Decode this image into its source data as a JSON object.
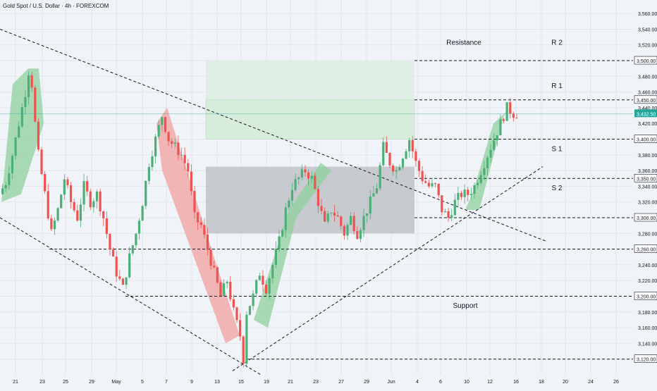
{
  "title": "Gold Spot / U.S. Dollar · 4h · FOREXCOM",
  "colors": {
    "background": "#f0f3f7",
    "up": "#4caf78",
    "down": "#ef5350",
    "grid": "#e3e6eb",
    "line": "#131722",
    "resistance_zone": "#d6ecd9",
    "consolidation_zone": "#b9bcc0",
    "arrow_up": "#8fd19e",
    "arrow_down": "#f2a0a0",
    "price_label": "#26a69a"
  },
  "chart_data": {
    "type": "candlestick",
    "symbol": "Gold Spot / U.S. Dollar",
    "timeframe": "4h",
    "source": "FOREXCOM",
    "ylim": [
      3100,
      3570
    ],
    "y_ticks": [
      "3,120.00",
      "3,140.00",
      "3,160.00",
      "3,180.00",
      "3,200.00",
      "3,220.00",
      "3,240.00",
      "3,260.00",
      "3,280.00",
      "3,300.00",
      "3,320.00",
      "3,340.00",
      "3,360.00",
      "3,380.00",
      "3,400.00",
      "3,420.00",
      "3,440.00",
      "3,460.00",
      "3,480.00",
      "3,500.00",
      "3,520.00",
      "3,540.00",
      "3,560.00"
    ],
    "x_ticks": [
      "21",
      "23",
      "25",
      "29",
      "May",
      "5",
      "7",
      "9",
      "13",
      "15",
      "19",
      "21",
      "23",
      "27",
      "29",
      "Jun",
      "4",
      "6",
      "10",
      "12",
      "16",
      "18",
      "20",
      "24",
      "26"
    ],
    "price_path": [
      [
        0,
        3330
      ],
      [
        2,
        3345
      ],
      [
        4,
        3380
      ],
      [
        6,
        3420
      ],
      [
        8,
        3460
      ],
      [
        9.5,
        3500
      ],
      [
        10.5,
        3440
      ],
      [
        12,
        3380
      ],
      [
        14,
        3330
      ],
      [
        16,
        3280
      ],
      [
        18,
        3310
      ],
      [
        20,
        3350
      ],
      [
        22,
        3320
      ],
      [
        24,
        3300
      ],
      [
        26,
        3340
      ],
      [
        28,
        3320
      ],
      [
        30,
        3330
      ],
      [
        32,
        3300
      ],
      [
        34,
        3260
      ],
      [
        36,
        3230
      ],
      [
        38,
        3210
      ],
      [
        40,
        3250
      ],
      [
        42,
        3280
      ],
      [
        44,
        3320
      ],
      [
        46,
        3370
      ],
      [
        48,
        3400
      ],
      [
        50,
        3430
      ],
      [
        52,
        3400
      ],
      [
        54,
        3390
      ],
      [
        56,
        3380
      ],
      [
        58,
        3360
      ],
      [
        60,
        3300
      ],
      [
        62,
        3290
      ],
      [
        64,
        3260
      ],
      [
        66,
        3230
      ],
      [
        68,
        3200
      ],
      [
        70,
        3220
      ],
      [
        72,
        3180
      ],
      [
        74,
        3150
      ],
      [
        75,
        3120
      ],
      [
        76,
        3180
      ],
      [
        78,
        3200
      ],
      [
        80,
        3230
      ],
      [
        82,
        3210
      ],
      [
        84,
        3240
      ],
      [
        86,
        3270
      ],
      [
        88,
        3310
      ],
      [
        90,
        3340
      ],
      [
        92,
        3350
      ],
      [
        94,
        3360
      ],
      [
        96,
        3350
      ],
      [
        98,
        3320
      ],
      [
        100,
        3290
      ],
      [
        102,
        3310
      ],
      [
        104,
        3300
      ],
      [
        106,
        3280
      ],
      [
        108,
        3300
      ],
      [
        110,
        3280
      ],
      [
        112,
        3300
      ],
      [
        114,
        3320
      ],
      [
        116,
        3340
      ],
      [
        118,
        3390
      ],
      [
        120,
        3370
      ],
      [
        122,
        3360
      ],
      [
        124,
        3380
      ],
      [
        126,
        3400
      ],
      [
        128,
        3370
      ],
      [
        130,
        3350
      ],
      [
        132,
        3340
      ],
      [
        134,
        3340
      ],
      [
        136,
        3310
      ],
      [
        138,
        3300
      ],
      [
        140,
        3320
      ],
      [
        142,
        3330
      ],
      [
        144,
        3330
      ],
      [
        146,
        3340
      ],
      [
        148,
        3360
      ],
      [
        150,
        3380
      ],
      [
        152,
        3400
      ],
      [
        154,
        3420
      ],
      [
        156,
        3440
      ],
      [
        158,
        3432.5
      ]
    ],
    "horizontal_levels": [
      {
        "label": "3,500.00",
        "value": 3500,
        "name": "R 2"
      },
      {
        "label": "3,450.00",
        "value": 3450,
        "name": "R 1"
      },
      {
        "label": "3,400.00",
        "value": 3400,
        "name": "S 1"
      },
      {
        "label": "3,350.00",
        "value": 3350,
        "name": "S 2"
      },
      {
        "label": "3,300.00",
        "value": 3300,
        "name": ""
      },
      {
        "label": "3,260.00",
        "value": 3260,
        "name": ""
      },
      {
        "label": "3,200.00",
        "value": 3200,
        "name": ""
      },
      {
        "label": "3,120.00",
        "value": 3120,
        "name": ""
      }
    ],
    "current_price": "3,432.50",
    "annotations": [
      "Resistance",
      "R 2",
      "R 1",
      "S 1",
      "S 2",
      "Support"
    ],
    "grid": true
  }
}
